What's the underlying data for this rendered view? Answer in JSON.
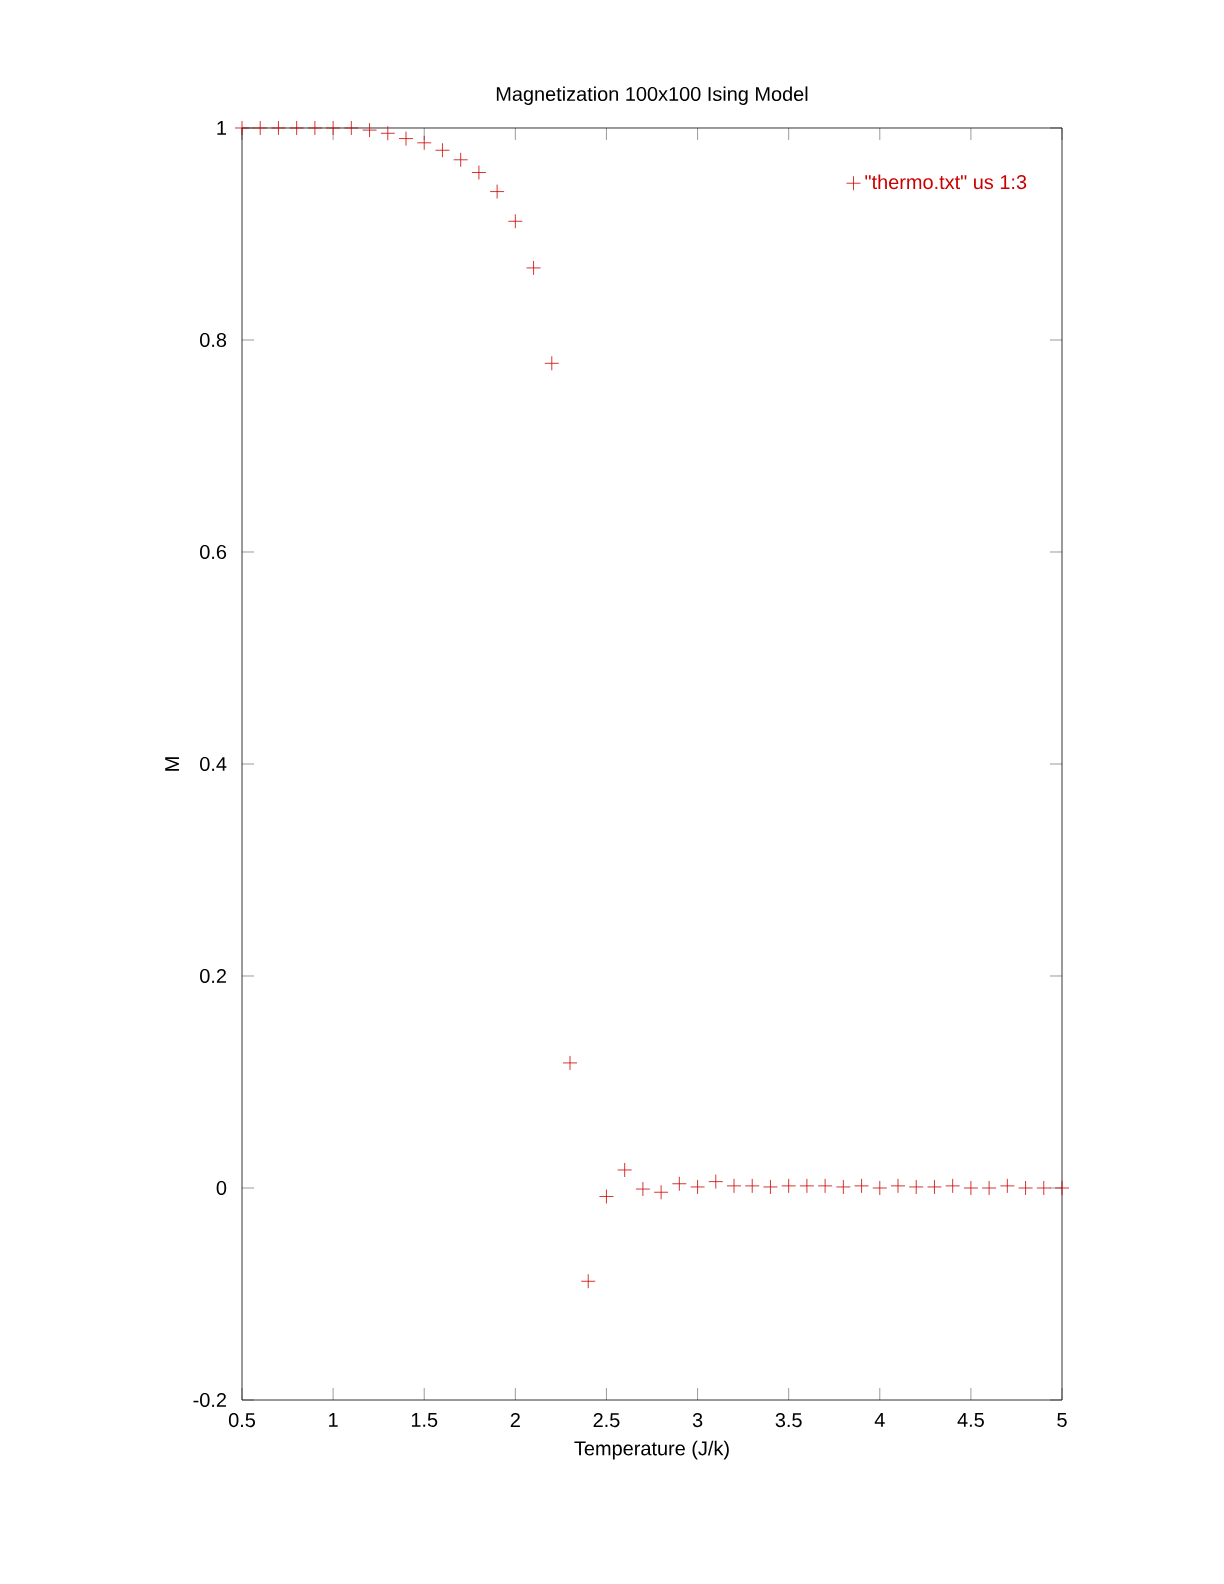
{
  "chart_data": {
    "type": "scatter",
    "title": "Magnetization 100x100 Ising Model",
    "xlabel": "Temperature (J/k)",
    "ylabel": "M",
    "x": [
      0.5,
      0.6,
      0.7,
      0.8,
      0.9,
      1.0,
      1.1,
      1.2,
      1.3,
      1.4,
      1.5,
      1.6,
      1.7,
      1.8,
      1.9,
      2.0,
      2.1,
      2.2,
      2.3,
      2.4,
      2.5,
      2.6,
      2.7,
      2.8,
      2.9,
      3.0,
      3.1,
      3.2,
      3.3,
      3.4,
      3.5,
      3.6,
      3.7,
      3.8,
      3.9,
      4.0,
      4.1,
      4.2,
      4.3,
      4.4,
      4.5,
      4.6,
      4.7,
      4.8,
      4.9,
      5.0
    ],
    "series": [
      {
        "name": "\"thermo.txt\" us 1:3",
        "color": "#cc0000",
        "values": [
          1.0,
          1.0,
          1.0,
          1.0,
          1.0,
          1.0,
          1.0,
          0.998,
          0.995,
          0.99,
          0.986,
          0.979,
          0.97,
          0.958,
          0.94,
          0.912,
          0.868,
          0.778,
          0.118,
          -0.088,
          -0.008,
          0.017,
          -0.001,
          -0.004,
          0.004,
          0.001,
          0.006,
          0.002,
          0.002,
          0.001,
          0.002,
          0.002,
          0.002,
          0.001,
          0.002,
          0.0,
          0.002,
          0.001,
          0.001,
          0.002,
          0.0,
          0.0,
          0.002,
          0.0,
          0.0,
          0.0
        ]
      }
    ],
    "xlim": [
      0.5,
      5
    ],
    "ylim": [
      -0.2,
      1
    ],
    "xticks": [
      0.5,
      1,
      1.5,
      2,
      2.5,
      3,
      3.5,
      4,
      4.5,
      5
    ],
    "yticks": [
      -0.2,
      0,
      0.2,
      0.4,
      0.6,
      0.8,
      1
    ],
    "marker": "cross",
    "legend": "top right",
    "grid": false
  }
}
